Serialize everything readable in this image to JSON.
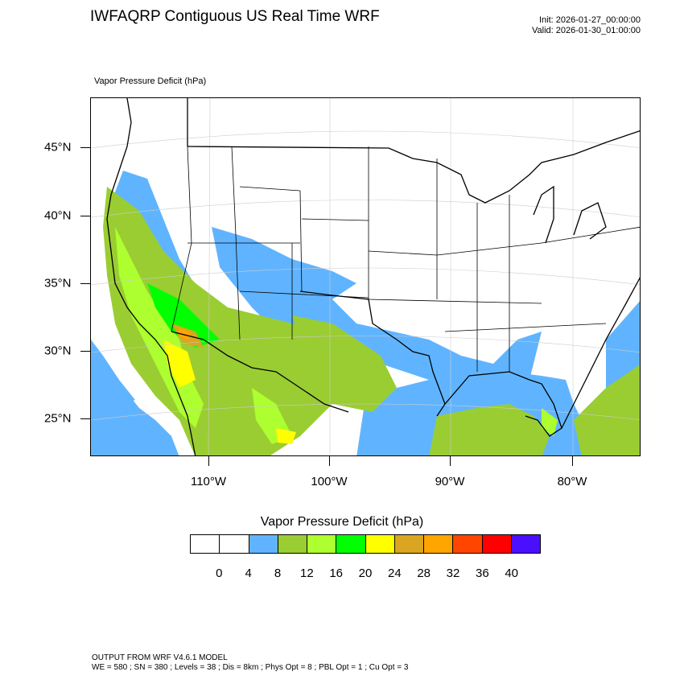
{
  "title": "IWFAQRP Contiguous US Real Time WRF",
  "init_line": "Init: 2026-01-27_00:00:00",
  "valid_line": "Valid: 2026-01-30_01:00:00",
  "field_label": "Vapor Pressure Deficit   (hPa)",
  "lat_labels": [
    "45°N",
    "40°N",
    "35°N",
    "30°N",
    "25°N"
  ],
  "lon_labels": [
    "110°W",
    "100°W",
    "90°W",
    "80°W"
  ],
  "colorbar": {
    "title": "Vapor Pressure Deficit  (hPa)",
    "levels": [
      "0",
      "4",
      "8",
      "12",
      "16",
      "20",
      "24",
      "28",
      "32",
      "36",
      "40"
    ],
    "colors": [
      "#ffffff",
      "#ffffff",
      "#60b4ff",
      "#9acd32",
      "#adff2f",
      "#00ff00",
      "#ffff00",
      "#daa520",
      "#ffa500",
      "#ff4500",
      "#ff0000",
      "#4b0fff"
    ]
  },
  "model_info": {
    "line1": "OUTPUT FROM WRF V4.6.1 MODEL",
    "line2": "WE = 580 ; SN = 380 ; Levels = 38 ; Dis = 8km ; Phys Opt = 8 ; PBL Opt = 1 ; Cu Opt = 3"
  }
}
